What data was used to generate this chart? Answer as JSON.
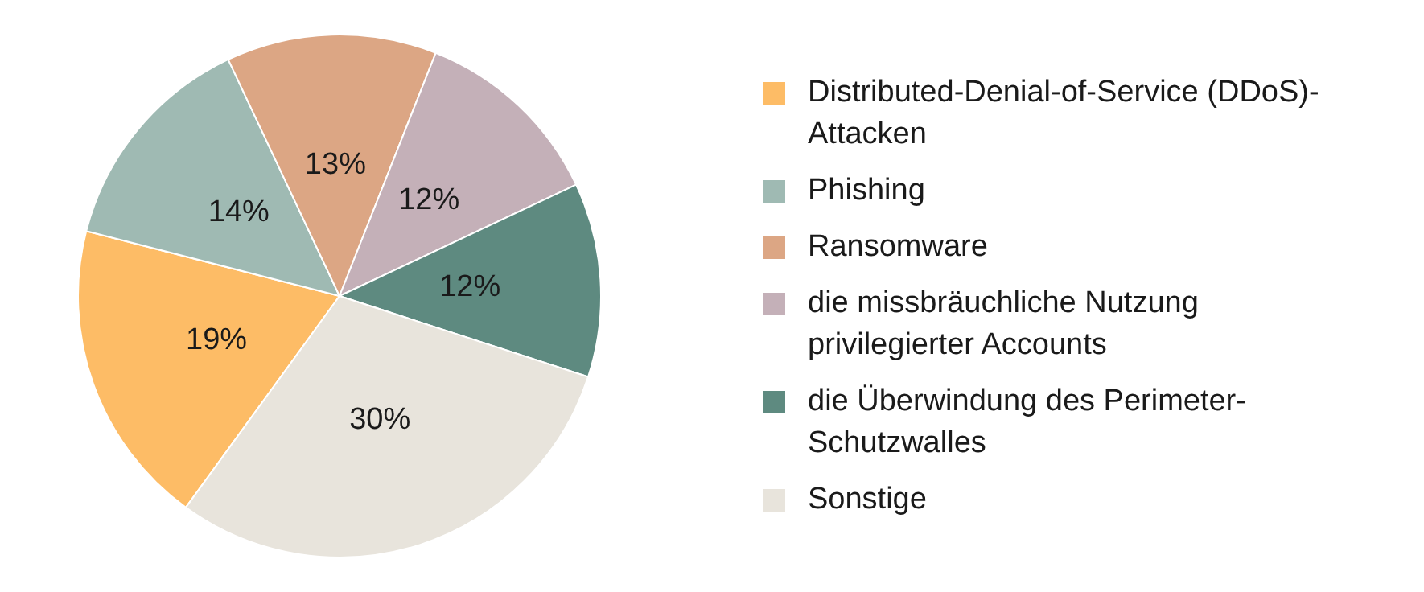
{
  "chart_data": {
    "type": "pie",
    "categories": [
      "Distributed-Denial-of-Service (DDoS)-Attacken",
      "Phishing",
      "Ransomware",
      "die missbräuchliche Nutzung privilegierter Accounts",
      "die Überwindung des Perimeter-Schutzwalles",
      "Sonstige"
    ],
    "values": [
      19,
      14,
      13,
      12,
      12,
      30
    ],
    "value_labels": [
      "19%",
      "14%",
      "13%",
      "12%",
      "12%",
      "30%"
    ],
    "colors": [
      "#fdbc66",
      "#9fbab3",
      "#dca684",
      "#c4b0b8",
      "#5e8a80",
      "#e8e4dc"
    ],
    "legend": "right"
  }
}
